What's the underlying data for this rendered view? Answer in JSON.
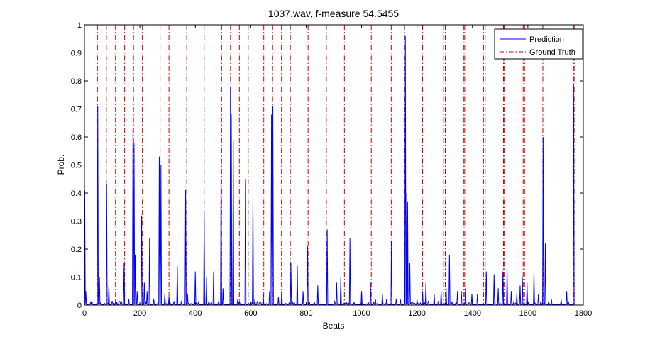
{
  "chart_data": {
    "type": "line",
    "title": "1037.wav, f-measure 54.5455",
    "xlabel": "Beats",
    "ylabel": "Prob.",
    "xlim": [
      0,
      1800
    ],
    "ylim": [
      0,
      1
    ],
    "xticks": [
      0,
      200,
      400,
      600,
      800,
      1000,
      1200,
      1400,
      1600,
      1800
    ],
    "yticks": [
      0,
      0.1,
      0.2,
      0.3,
      0.4,
      0.5,
      0.6,
      0.7,
      0.8,
      0.9,
      1
    ],
    "ytick_labels": [
      "0",
      "0.1",
      "0.2",
      "0.3",
      "0.4",
      "0.5",
      "0.6",
      "0.7",
      "0.8",
      "0.9",
      "1"
    ],
    "grid": false,
    "legend_position": "top-right",
    "series": [
      {
        "name": "Prediction",
        "color": "#0000ff",
        "style": "solid",
        "peaks": [
          [
            1,
            0.41
          ],
          [
            5,
            0.05
          ],
          [
            27,
            0.015
          ],
          [
            48,
            0.71
          ],
          [
            54,
            0.1
          ],
          [
            80,
            0.43
          ],
          [
            88,
            0.07
          ],
          [
            113,
            0.02
          ],
          [
            143,
            0.15
          ],
          [
            160,
            0.02
          ],
          [
            175,
            0.63
          ],
          [
            179,
            0.58
          ],
          [
            183,
            0.18
          ],
          [
            190,
            0.05
          ],
          [
            206,
            0.32
          ],
          [
            216,
            0.08
          ],
          [
            226,
            0.05
          ],
          [
            235,
            0.24
          ],
          [
            250,
            0.02
          ],
          [
            270,
            0.53
          ],
          [
            276,
            0.5
          ],
          [
            290,
            0.04
          ],
          [
            305,
            0.03
          ],
          [
            335,
            0.14
          ],
          [
            365,
            0.41
          ],
          [
            372,
            0.04
          ],
          [
            400,
            0.12
          ],
          [
            432,
            0.33
          ],
          [
            440,
            0.1
          ],
          [
            466,
            0.12
          ],
          [
            493,
            0.51
          ],
          [
            500,
            0.06
          ],
          [
            527,
            0.78
          ],
          [
            530,
            0.68
          ],
          [
            537,
            0.59
          ],
          [
            553,
            0.02
          ],
          [
            581,
            0.45
          ],
          [
            608,
            0.38
          ],
          [
            615,
            0.02
          ],
          [
            645,
            0.04
          ],
          [
            668,
            0.05
          ],
          [
            675,
            0.68
          ],
          [
            680,
            0.71
          ],
          [
            700,
            0.03
          ],
          [
            712,
            0.05
          ],
          [
            745,
            0.15
          ],
          [
            768,
            0.14
          ],
          [
            789,
            0.05
          ],
          [
            805,
            0.21
          ],
          [
            842,
            0.07
          ],
          [
            876,
            0.27
          ],
          [
            910,
            0.08
          ],
          [
            925,
            0.1
          ],
          [
            958,
            0.24
          ],
          [
            1000,
            0.05
          ],
          [
            1032,
            0.08
          ],
          [
            1050,
            0.02
          ],
          [
            1075,
            0.04
          ],
          [
            1090,
            0.02
          ],
          [
            1108,
            0.23
          ],
          [
            1125,
            0.02
          ],
          [
            1140,
            0.02
          ],
          [
            1158,
            0.96
          ],
          [
            1163,
            0.4
          ],
          [
            1166,
            0.37
          ],
          [
            1174,
            0.15
          ],
          [
            1200,
            0.02
          ],
          [
            1220,
            0.05
          ],
          [
            1232,
            0.08
          ],
          [
            1262,
            0.04
          ],
          [
            1287,
            0.05
          ],
          [
            1305,
            0.06
          ],
          [
            1317,
            0.18
          ],
          [
            1346,
            0.05
          ],
          [
            1360,
            0.05
          ],
          [
            1375,
            0.06
          ],
          [
            1398,
            0.04
          ],
          [
            1418,
            0.04
          ],
          [
            1450,
            0.12
          ],
          [
            1478,
            0.11
          ],
          [
            1493,
            0.06
          ],
          [
            1510,
            0.12
          ],
          [
            1525,
            0.13
          ],
          [
            1540,
            0.05
          ],
          [
            1560,
            0.04
          ],
          [
            1572,
            0.07
          ],
          [
            1580,
            0.1
          ],
          [
            1597,
            0.08
          ],
          [
            1622,
            0.12
          ],
          [
            1638,
            0.04
          ],
          [
            1655,
            0.6
          ],
          [
            1663,
            0.22
          ],
          [
            1685,
            0.02
          ],
          [
            1720,
            0.02
          ],
          [
            1740,
            0.05
          ],
          [
            1765,
            0.79
          ]
        ]
      },
      {
        "name": "Ground Truth",
        "color": "#cc0000",
        "style": "dash-dot",
        "x": [
          47,
          79,
          112,
          145,
          177,
          209,
          273,
          305,
          369,
          432,
          495,
          527,
          559,
          591,
          647,
          679,
          711,
          743,
          807,
          873,
          938,
          1035,
          1107,
          1155,
          1220,
          1225,
          1296,
          1302,
          1368,
          1372,
          1440,
          1446,
          1512,
          1515,
          1583,
          1588,
          1654,
          1764,
          1767
        ]
      }
    ]
  }
}
